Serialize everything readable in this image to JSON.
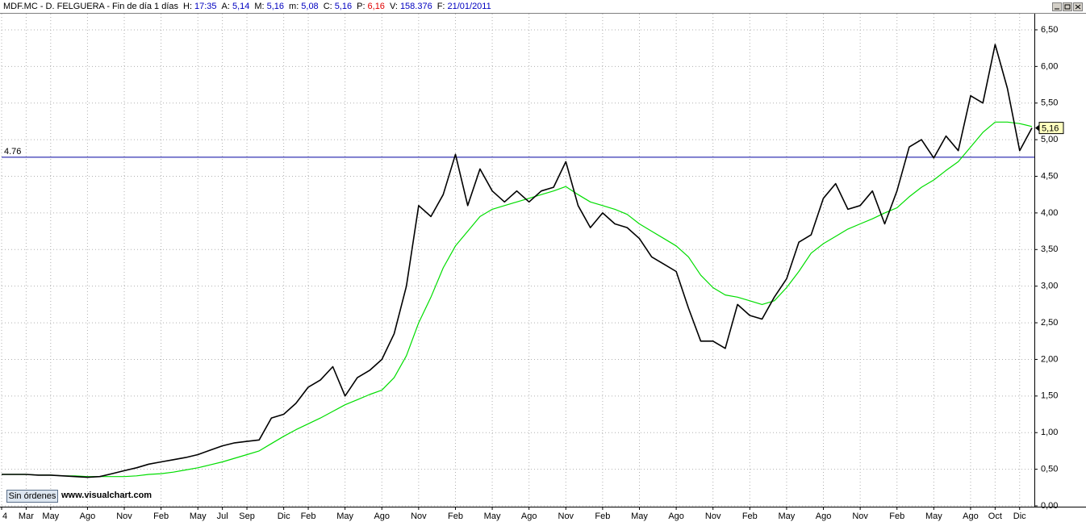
{
  "chart_data": {
    "type": "line",
    "header": {
      "symbol": "MDF.MC - D. FELGUERA - Fin de día 1 días",
      "fields": [
        {
          "label": "H:",
          "value": "17:35",
          "color": "#0000c0"
        },
        {
          "label": "A:",
          "value": "5,14",
          "color": "#0000c0"
        },
        {
          "label": "M:",
          "value": "5,16",
          "color": "#0000c0"
        },
        {
          "label": "m:",
          "value": "5,08",
          "color": "#0000c0"
        },
        {
          "label": "C:",
          "value": "5,16",
          "color": "#0000c0"
        },
        {
          "label": "P:",
          "value": "6,16",
          "color": "#e00000"
        },
        {
          "label": "V:",
          "value": "158.376",
          "color": "#0000c0"
        },
        {
          "label": "F:",
          "value": "21/01/2011",
          "color": "#0000c0"
        }
      ]
    },
    "x": [
      0,
      1,
      2,
      3,
      4,
      5,
      6,
      7,
      8,
      9,
      10,
      11,
      12,
      13,
      14,
      15,
      16,
      17,
      18,
      19,
      20,
      21,
      22,
      23,
      24,
      25,
      26,
      27,
      28,
      29,
      30,
      31,
      32,
      33,
      34,
      35,
      36,
      37,
      38,
      39,
      40,
      41,
      42,
      43,
      44,
      45,
      46,
      47,
      48,
      49,
      50,
      51,
      52,
      53,
      54,
      55,
      56,
      57,
      58,
      59,
      60,
      61,
      62,
      63,
      64,
      65,
      66,
      67,
      68,
      69,
      70,
      71,
      72,
      73,
      74,
      75,
      76,
      77,
      78,
      79,
      80,
      81,
      82,
      83,
      84
    ],
    "series": [
      {
        "color": "#000000",
        "values": [
          0.43,
          0.43,
          0.43,
          0.42,
          0.42,
          0.41,
          0.4,
          0.39,
          0.4,
          0.44,
          0.48,
          0.52,
          0.57,
          0.6,
          0.63,
          0.66,
          0.7,
          0.76,
          0.82,
          0.86,
          0.88,
          0.9,
          1.2,
          1.25,
          1.4,
          1.62,
          1.72,
          1.9,
          1.5,
          1.75,
          1.85,
          2.0,
          2.35,
          3.0,
          4.1,
          3.95,
          4.25,
          4.8,
          4.1,
          4.6,
          4.3,
          4.15,
          4.3,
          4.15,
          4.3,
          4.35,
          4.7,
          4.1,
          3.8,
          4.0,
          3.85,
          3.8,
          3.65,
          3.4,
          3.3,
          3.2,
          2.7,
          2.25,
          2.25,
          2.15,
          2.75,
          2.6,
          2.55,
          2.85,
          3.1,
          3.6,
          3.7,
          4.2,
          4.4,
          4.05,
          4.1,
          4.3,
          3.85,
          4.3,
          4.9,
          5.0,
          4.75,
          5.05,
          4.85,
          5.6,
          5.5,
          6.3,
          5.7,
          4.85,
          5.16
        ]
      },
      {
        "color": "#00dd00",
        "values": [
          0.43,
          0.43,
          0.43,
          0.42,
          0.42,
          0.41,
          0.41,
          0.4,
          0.4,
          0.4,
          0.4,
          0.41,
          0.43,
          0.44,
          0.46,
          0.49,
          0.52,
          0.56,
          0.6,
          0.65,
          0.7,
          0.75,
          0.85,
          0.95,
          1.04,
          1.12,
          1.2,
          1.29,
          1.38,
          1.45,
          1.52,
          1.58,
          1.75,
          2.05,
          2.5,
          2.85,
          3.25,
          3.55,
          3.75,
          3.95,
          4.05,
          4.1,
          4.15,
          4.2,
          4.25,
          4.3,
          4.36,
          4.25,
          4.15,
          4.1,
          4.05,
          3.98,
          3.85,
          3.75,
          3.65,
          3.55,
          3.4,
          3.15,
          2.98,
          2.88,
          2.85,
          2.8,
          2.75,
          2.8,
          2.98,
          3.2,
          3.45,
          3.58,
          3.68,
          3.78,
          3.85,
          3.92,
          4.0,
          4.07,
          4.22,
          4.35,
          4.45,
          4.58,
          4.7,
          4.9,
          5.1,
          5.24,
          5.24,
          5.22,
          5.18
        ]
      }
    ],
    "xlim": [
      0,
      84.2
    ],
    "xticks": [
      {
        "value": 0,
        "label": "4"
      },
      {
        "value": 2,
        "label": "Mar"
      },
      {
        "value": 4,
        "label": "May"
      },
      {
        "value": 7,
        "label": "Ago"
      },
      {
        "value": 10,
        "label": "Nov"
      },
      {
        "value": 13,
        "label": "Feb"
      },
      {
        "value": 16,
        "label": "May"
      },
      {
        "value": 18,
        "label": "Jul"
      },
      {
        "value": 20,
        "label": "Sep"
      },
      {
        "value": 23,
        "label": "Dic"
      },
      {
        "value": 25,
        "label": "Feb"
      },
      {
        "value": 28,
        "label": "May"
      },
      {
        "value": 31,
        "label": "Ago"
      },
      {
        "value": 34,
        "label": "Nov"
      },
      {
        "value": 37,
        "label": "Feb"
      },
      {
        "value": 40,
        "label": "May"
      },
      {
        "value": 43,
        "label": "Ago"
      },
      {
        "value": 46,
        "label": "Nov"
      },
      {
        "value": 49,
        "label": "Feb"
      },
      {
        "value": 52,
        "label": "May"
      },
      {
        "value": 55,
        "label": "Ago"
      },
      {
        "value": 58,
        "label": "Nov"
      },
      {
        "value": 61,
        "label": "Feb"
      },
      {
        "value": 64,
        "label": "May"
      },
      {
        "value": 67,
        "label": "Ago"
      },
      {
        "value": 70,
        "label": "Nov"
      },
      {
        "value": 73,
        "label": "Feb"
      },
      {
        "value": 76,
        "label": "May"
      },
      {
        "value": 79,
        "label": "Ago"
      },
      {
        "value": 81,
        "label": "Oct"
      },
      {
        "value": 83,
        "label": "Dic"
      }
    ],
    "ylim": [
      0,
      6.72
    ],
    "yticks": [
      {
        "value": 0,
        "label": "0,00"
      },
      {
        "value": 0.5,
        "label": "0,50"
      },
      {
        "value": 1,
        "label": "1,00"
      },
      {
        "value": 1.5,
        "label": "1,50"
      },
      {
        "value": 2,
        "label": "2,00"
      },
      {
        "value": 2.5,
        "label": "2,50"
      },
      {
        "value": 3,
        "label": "3,00"
      },
      {
        "value": 3.5,
        "label": "3,50"
      },
      {
        "value": 4,
        "label": "4,00"
      },
      {
        "value": 4.5,
        "label": "4,50"
      },
      {
        "value": 5,
        "label": "5,00"
      },
      {
        "value": 5.5,
        "label": "5,50"
      },
      {
        "value": 6,
        "label": "6,00"
      },
      {
        "value": 6.5,
        "label": "6,50"
      }
    ],
    "grid": true,
    "hline": 4.76,
    "hline_color": "#0000a0",
    "last_price": {
      "value": 5.16,
      "label": "5,16"
    },
    "button": "Sin órdenes",
    "watermark": "www.visualchart.com"
  }
}
